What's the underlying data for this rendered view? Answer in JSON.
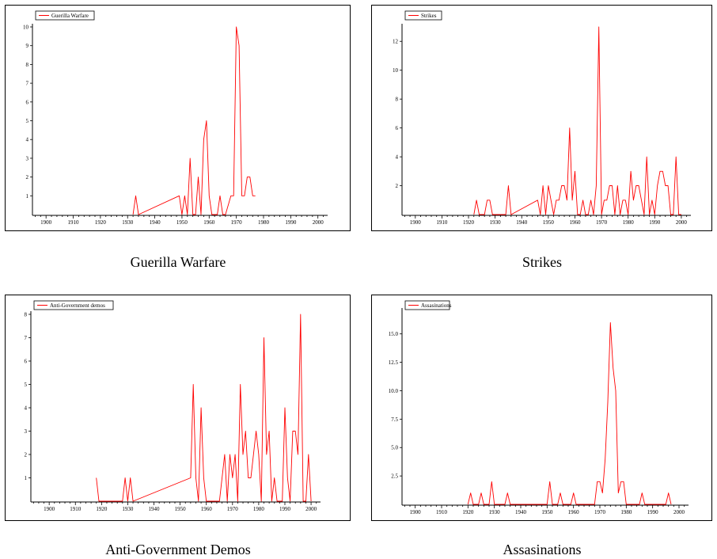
{
  "chart_data": [
    {
      "type": "line",
      "legend": "Guerilla Warfare",
      "caption": "Guerilla  Warfare",
      "color": "#ff0000",
      "xlim": [
        1895,
        2003
      ],
      "ylim": [
        0,
        10
      ],
      "x_ticks": [
        1900,
        1910,
        1920,
        1930,
        1940,
        1950,
        1960,
        1970,
        1980,
        1990,
        2000
      ],
      "y_ticks": [
        1,
        2,
        3,
        4,
        5,
        6,
        7,
        8,
        9,
        10
      ],
      "y_tick_labels": [
        "1",
        "2",
        "3",
        "4",
        "5",
        "6",
        "7",
        "8",
        "9",
        "10"
      ],
      "x": [
        1932,
        1933,
        1934,
        1949,
        1950,
        1951,
        1952,
        1953,
        1954,
        1955,
        1956,
        1957,
        1958,
        1959,
        1960,
        1961,
        1962,
        1963,
        1964,
        1965,
        1966,
        1968,
        1969,
        1970,
        1971,
        1972,
        1973,
        1974,
        1975,
        1976,
        1977
      ],
      "y": [
        0,
        1,
        0,
        1,
        0,
        1,
        0,
        3,
        0,
        0,
        2,
        0,
        4,
        5,
        1,
        0,
        0,
        0,
        1,
        0,
        0,
        1,
        1,
        10,
        9,
        1,
        1,
        2,
        2,
        1,
        1
      ]
    },
    {
      "type": "line",
      "legend": "Strikes",
      "caption": "Strikes",
      "color": "#ff0000",
      "xlim": [
        1895,
        2003
      ],
      "ylim": [
        0,
        13
      ],
      "x_ticks": [
        1900,
        1910,
        1920,
        1930,
        1940,
        1950,
        1960,
        1970,
        1980,
        1990,
        2000
      ],
      "y_ticks": [
        2,
        4,
        6,
        8,
        10,
        12
      ],
      "y_tick_labels": [
        "2",
        "4",
        "6",
        "8",
        "10",
        "12"
      ],
      "x": [
        1922,
        1923,
        1924,
        1926,
        1927,
        1928,
        1929,
        1934,
        1935,
        1936,
        1946,
        1947,
        1948,
        1949,
        1950,
        1951,
        1952,
        1953,
        1954,
        1955,
        1956,
        1957,
        1958,
        1959,
        1960,
        1961,
        1962,
        1963,
        1964,
        1965,
        1966,
        1967,
        1968,
        1969,
        1970,
        1971,
        1972,
        1973,
        1974,
        1975,
        1976,
        1977,
        1978,
        1979,
        1980,
        1981,
        1982,
        1983,
        1984,
        1985,
        1986,
        1987,
        1988,
        1989,
        1990,
        1991,
        1992,
        1993,
        1994,
        1995,
        1996,
        1997,
        1998,
        1999,
        2000
      ],
      "y": [
        0,
        1,
        0,
        0,
        1,
        1,
        0,
        0,
        2,
        0,
        1,
        0,
        2,
        0,
        2,
        1,
        0,
        1,
        1,
        2,
        2,
        1,
        6,
        1,
        3,
        0,
        0,
        1,
        0,
        0,
        1,
        0,
        2,
        13,
        0,
        1,
        1,
        2,
        2,
        0,
        2,
        0,
        1,
        1,
        0,
        3,
        1,
        2,
        2,
        1,
        0,
        4,
        0,
        1,
        0,
        2,
        3,
        3,
        2,
        2,
        0,
        0,
        4,
        0,
        0
      ]
    },
    {
      "type": "line",
      "legend": "Anti-Government demos",
      "caption": "Anti-Government  Demos",
      "color": "#ff0000",
      "xlim": [
        1893,
        2003
      ],
      "ylim": [
        0,
        8
      ],
      "x_ticks": [
        1900,
        1910,
        1920,
        1930,
        1940,
        1950,
        1960,
        1970,
        1980,
        1990,
        2000
      ],
      "y_ticks": [
        1,
        2,
        3,
        4,
        5,
        6,
        7,
        8
      ],
      "y_tick_labels": [
        "1",
        "2",
        "3",
        "4",
        "5",
        "6",
        "7",
        "8"
      ],
      "x": [
        1918,
        1919,
        1928,
        1929,
        1930,
        1931,
        1932,
        1954,
        1955,
        1956,
        1957,
        1958,
        1959,
        1960,
        1965,
        1966,
        1967,
        1968,
        1969,
        1970,
        1971,
        1972,
        1973,
        1974,
        1975,
        1976,
        1977,
        1978,
        1979,
        1980,
        1981,
        1982,
        1983,
        1984,
        1985,
        1986,
        1987,
        1988,
        1989,
        1990,
        1991,
        1992,
        1993,
        1994,
        1995,
        1996,
        1997,
        1998,
        1999,
        2000
      ],
      "y": [
        1,
        0,
        0,
        1,
        0,
        1,
        0,
        1,
        5,
        1,
        0,
        4,
        1,
        0,
        0,
        1,
        2,
        0,
        2,
        1,
        2,
        0,
        5,
        2,
        3,
        1,
        1,
        2,
        3,
        2,
        0,
        7,
        2,
        3,
        0,
        1,
        0,
        0,
        0,
        4,
        1,
        0,
        3,
        3,
        2,
        8,
        0,
        0,
        2,
        0
      ]
    },
    {
      "type": "line",
      "legend": "Assasinations",
      "caption": "Assasinations",
      "color": "#ff0000",
      "xlim": [
        1895,
        2003
      ],
      "ylim": [
        0,
        17
      ],
      "x_ticks": [
        1900,
        1910,
        1920,
        1930,
        1940,
        1950,
        1960,
        1970,
        1980,
        1990,
        2000
      ],
      "y_ticks": [
        2.5,
        5.0,
        7.5,
        10.0,
        12.5,
        15.0
      ],
      "y_tick_labels": [
        "2.5",
        "5.0",
        "7.5",
        "10.0",
        "12.5",
        "15.0"
      ],
      "x": [
        1920,
        1921,
        1922,
        1924,
        1925,
        1926,
        1928,
        1929,
        1930,
        1934,
        1935,
        1936,
        1950,
        1951,
        1952,
        1954,
        1955,
        1956,
        1959,
        1960,
        1961,
        1968,
        1969,
        1970,
        1971,
        1972,
        1973,
        1974,
        1975,
        1976,
        1977,
        1978,
        1979,
        1980,
        1985,
        1986,
        1987,
        1995,
        1996,
        1997
      ],
      "y": [
        0,
        1,
        0,
        0,
        1,
        0,
        0,
        2,
        0,
        0,
        1,
        0,
        0,
        2,
        0,
        0,
        1,
        0,
        0,
        1,
        0,
        0,
        2,
        2,
        1,
        4,
        9,
        16,
        12,
        10,
        1,
        2,
        2,
        0,
        0,
        1,
        0,
        0,
        1,
        0
      ]
    }
  ]
}
